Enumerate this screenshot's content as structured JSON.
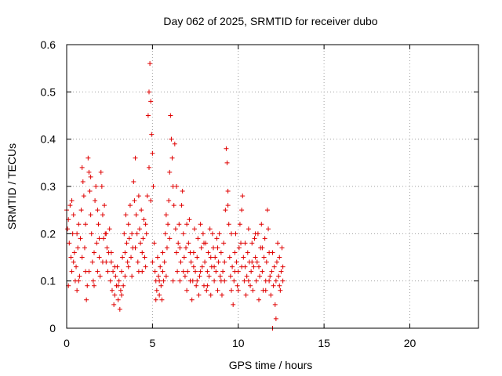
{
  "chart_data": {
    "type": "scatter",
    "title": "Day 062 of 2025, SRMTID for receiver dubo",
    "xlabel": "GPS time / hours",
    "ylabel": "SRMTID / TECUs",
    "xlim": [
      0,
      24
    ],
    "ylim": [
      0,
      0.6
    ],
    "x_ticks": [
      0,
      5,
      10,
      15,
      20
    ],
    "y_ticks": [
      0,
      0.1,
      0.2,
      0.3,
      0.4,
      0.5,
      0.6
    ],
    "x_tick_labels": [
      "0",
      "5",
      "10",
      "15",
      "20"
    ],
    "y_tick_labels": [
      "0",
      "0.1",
      "0.2",
      "0.3",
      "0.4",
      "0.5",
      "0.6"
    ],
    "grid": true,
    "marker": "+",
    "marker_color": "#e00000",
    "series": [
      {
        "name": "SRMTID",
        "points": [
          [
            0.0,
            0.25
          ],
          [
            0.05,
            0.21
          ],
          [
            0.1,
            0.23
          ],
          [
            0.15,
            0.18
          ],
          [
            0.2,
            0.26
          ],
          [
            0.25,
            0.15
          ],
          [
            0.3,
            0.12
          ],
          [
            0.35,
            0.2
          ],
          [
            0.4,
            0.24
          ],
          [
            0.45,
            0.16
          ],
          [
            0.5,
            0.1
          ],
          [
            0.55,
            0.13
          ],
          [
            0.6,
            0.08
          ],
          [
            0.65,
            0.17
          ],
          [
            0.7,
            0.22
          ],
          [
            0.75,
            0.11
          ],
          [
            0.8,
            0.19
          ],
          [
            0.85,
            0.25
          ],
          [
            0.9,
            0.34
          ],
          [
            0.95,
            0.31
          ],
          [
            1.0,
            0.28
          ],
          [
            1.05,
            0.17
          ],
          [
            1.1,
            0.12
          ],
          [
            1.15,
            0.06
          ],
          [
            1.2,
            0.09
          ],
          [
            1.25,
            0.36
          ],
          [
            1.3,
            0.33
          ],
          [
            1.35,
            0.29
          ],
          [
            1.4,
            0.24
          ],
          [
            1.45,
            0.2
          ],
          [
            1.5,
            0.14
          ],
          [
            1.55,
            0.1
          ],
          [
            1.6,
            0.16
          ],
          [
            1.65,
            0.27
          ],
          [
            1.7,
            0.3
          ],
          [
            1.75,
            0.18
          ],
          [
            1.8,
            0.12
          ],
          [
            1.85,
            0.22
          ],
          [
            1.9,
            0.15
          ],
          [
            1.95,
            0.11
          ],
          [
            2.0,
            0.33
          ],
          [
            2.05,
            0.3
          ],
          [
            2.1,
            0.24
          ],
          [
            2.15,
            0.19
          ],
          [
            2.2,
            0.26
          ],
          [
            2.25,
            0.2
          ],
          [
            2.3,
            0.14
          ],
          [
            2.35,
            0.17
          ],
          [
            2.4,
            0.12
          ],
          [
            2.45,
            0.16
          ],
          [
            2.5,
            0.21
          ],
          [
            2.55,
            0.1
          ],
          [
            2.6,
            0.14
          ],
          [
            2.65,
            0.08
          ],
          [
            2.7,
            0.12
          ],
          [
            2.75,
            0.05
          ],
          [
            2.8,
            0.07
          ],
          [
            2.85,
            0.11
          ],
          [
            2.9,
            0.09
          ],
          [
            2.95,
            0.13
          ],
          [
            3.0,
            0.06
          ],
          [
            3.05,
            0.1
          ],
          [
            3.1,
            0.04
          ],
          [
            3.15,
            0.08
          ],
          [
            3.2,
            0.12
          ],
          [
            3.25,
            0.15
          ],
          [
            3.3,
            0.09
          ],
          [
            3.35,
            0.2
          ],
          [
            3.4,
            0.16
          ],
          [
            3.45,
            0.24
          ],
          [
            3.5,
            0.18
          ],
          [
            3.55,
            0.14
          ],
          [
            3.6,
            0.22
          ],
          [
            3.65,
            0.19
          ],
          [
            3.7,
            0.26
          ],
          [
            3.75,
            0.15
          ],
          [
            3.8,
            0.11
          ],
          [
            3.85,
            0.17
          ],
          [
            3.9,
            0.31
          ],
          [
            3.95,
            0.27
          ],
          [
            4.0,
            0.36
          ],
          [
            4.05,
            0.24
          ],
          [
            4.1,
            0.2
          ],
          [
            4.15,
            0.14
          ],
          [
            4.2,
            0.12
          ],
          [
            4.25,
            0.21
          ],
          [
            4.3,
            0.18
          ],
          [
            4.35,
            0.25
          ],
          [
            4.4,
            0.16
          ],
          [
            4.45,
            0.19
          ],
          [
            4.5,
            0.23
          ],
          [
            4.55,
            0.15
          ],
          [
            4.6,
            0.13
          ],
          [
            4.65,
            0.2
          ],
          [
            4.7,
            0.28
          ],
          [
            4.75,
            0.45
          ],
          [
            4.8,
            0.5
          ],
          [
            4.85,
            0.56
          ],
          [
            4.9,
            0.48
          ],
          [
            4.95,
            0.41
          ],
          [
            5.0,
            0.37
          ],
          [
            5.05,
            0.3
          ],
          [
            5.1,
            0.18
          ],
          [
            5.15,
            0.12
          ],
          [
            5.2,
            0.1
          ],
          [
            5.25,
            0.08
          ],
          [
            5.3,
            0.15
          ],
          [
            5.35,
            0.11
          ],
          [
            5.4,
            0.07
          ],
          [
            5.45,
            0.13
          ],
          [
            5.5,
            0.09
          ],
          [
            5.55,
            0.06
          ],
          [
            5.6,
            0.12
          ],
          [
            5.65,
            0.1
          ],
          [
            5.7,
            0.14
          ],
          [
            5.75,
            0.2
          ],
          [
            5.8,
            0.24
          ],
          [
            5.85,
            0.17
          ],
          [
            5.9,
            0.22
          ],
          [
            5.95,
            0.27
          ],
          [
            6.0,
            0.33
          ],
          [
            6.05,
            0.45
          ],
          [
            6.1,
            0.4
          ],
          [
            6.15,
            0.36
          ],
          [
            6.2,
            0.3
          ],
          [
            6.25,
            0.26
          ],
          [
            6.3,
            0.39
          ],
          [
            6.35,
            0.21
          ],
          [
            6.4,
            0.16
          ],
          [
            6.45,
            0.12
          ],
          [
            6.5,
            0.18
          ],
          [
            6.55,
            0.22
          ],
          [
            6.6,
            0.1
          ],
          [
            6.65,
            0.14
          ],
          [
            6.7,
            0.26
          ],
          [
            6.75,
            0.29
          ],
          [
            6.8,
            0.2
          ],
          [
            6.85,
            0.15
          ],
          [
            6.9,
            0.11
          ],
          [
            6.95,
            0.17
          ],
          [
            7.0,
            0.08
          ],
          [
            7.05,
            0.12
          ],
          [
            7.1,
            0.18
          ],
          [
            7.15,
            0.23
          ],
          [
            7.2,
            0.1
          ],
          [
            7.25,
            0.14
          ],
          [
            7.3,
            0.06
          ],
          [
            7.35,
            0.1
          ],
          [
            7.4,
            0.16
          ],
          [
            7.45,
            0.21
          ],
          [
            7.5,
            0.12
          ],
          [
            7.55,
            0.09
          ],
          [
            7.6,
            0.15
          ],
          [
            7.65,
            0.19
          ],
          [
            7.7,
            0.07
          ],
          [
            7.75,
            0.11
          ],
          [
            7.8,
            0.22
          ],
          [
            7.85,
            0.17
          ],
          [
            7.9,
            0.13
          ],
          [
            7.95,
            0.2
          ],
          [
            8.0,
            0.09
          ],
          [
            8.05,
            0.14
          ],
          [
            8.1,
            0.18
          ],
          [
            8.15,
            0.08
          ],
          [
            8.2,
            0.12
          ],
          [
            8.25,
            0.16
          ],
          [
            8.3,
            0.11
          ],
          [
            8.35,
            0.21
          ],
          [
            8.4,
            0.07
          ],
          [
            8.45,
            0.13
          ],
          [
            8.5,
            0.2
          ],
          [
            8.55,
            0.17
          ],
          [
            8.6,
            0.1
          ],
          [
            8.65,
            0.15
          ],
          [
            8.7,
            0.12
          ],
          [
            8.75,
            0.19
          ],
          [
            8.8,
            0.08
          ],
          [
            8.85,
            0.14
          ],
          [
            8.9,
            0.2
          ],
          [
            8.95,
            0.11
          ],
          [
            9.0,
            0.16
          ],
          [
            9.05,
            0.07
          ],
          [
            9.1,
            0.12
          ],
          [
            9.15,
            0.18
          ],
          [
            9.2,
            0.1
          ],
          [
            9.25,
            0.25
          ],
          [
            9.3,
            0.38
          ],
          [
            9.35,
            0.35
          ],
          [
            9.4,
            0.29
          ],
          [
            9.45,
            0.22
          ],
          [
            9.5,
            0.15
          ],
          [
            9.55,
            0.11
          ],
          [
            9.6,
            0.08
          ],
          [
            9.65,
            0.13
          ],
          [
            9.7,
            0.05
          ],
          [
            9.75,
            0.1
          ],
          [
            9.8,
            0.16
          ],
          [
            9.85,
            0.2
          ],
          [
            9.9,
            0.14
          ],
          [
            9.95,
            0.09
          ],
          [
            10.0,
            0.12
          ],
          [
            10.05,
            0.17
          ],
          [
            10.1,
            0.22
          ],
          [
            10.15,
            0.18
          ],
          [
            10.2,
            0.25
          ],
          [
            10.25,
            0.28
          ],
          [
            10.3,
            0.15
          ],
          [
            10.35,
            0.1
          ],
          [
            10.4,
            0.13
          ],
          [
            10.45,
            0.07
          ],
          [
            10.5,
            0.11
          ],
          [
            10.55,
            0.16
          ],
          [
            10.6,
            0.21
          ],
          [
            10.65,
            0.14
          ],
          [
            10.7,
            0.09
          ],
          [
            10.75,
            0.12
          ],
          [
            10.8,
            0.18
          ],
          [
            10.85,
            0.08
          ],
          [
            10.9,
            0.13
          ],
          [
            10.95,
            0.19
          ],
          [
            11.0,
            0.15
          ],
          [
            11.05,
            0.1
          ],
          [
            11.1,
            0.14
          ],
          [
            11.15,
            0.2
          ],
          [
            11.2,
            0.06
          ],
          [
            11.25,
            0.11
          ],
          [
            11.3,
            0.17
          ],
          [
            11.35,
            0.22
          ],
          [
            11.4,
            0.12
          ],
          [
            11.45,
            0.08
          ],
          [
            11.5,
            0.15
          ],
          [
            11.55,
            0.19
          ],
          [
            11.6,
            0.1
          ],
          [
            11.65,
            0.14
          ],
          [
            11.7,
            0.25
          ],
          [
            11.75,
            0.21
          ],
          [
            11.8,
            0.16
          ],
          [
            11.85,
            0.11
          ],
          [
            11.9,
            0.07
          ],
          [
            11.95,
            0.12
          ],
          [
            12.0,
            0.16
          ],
          [
            12.05,
            0.09
          ],
          [
            12.1,
            0.13
          ],
          [
            12.15,
            0.05
          ],
          [
            12.2,
            0.1
          ],
          [
            12.25,
            0.14
          ],
          [
            12.3,
            0.18
          ],
          [
            12.35,
            0.11
          ],
          [
            12.4,
            0.15
          ],
          [
            12.45,
            0.08
          ],
          [
            12.5,
            0.12
          ],
          [
            12.55,
            0.17
          ],
          [
            12.6,
            0.13
          ],
          [
            0.1,
            0.09
          ],
          [
            0.3,
            0.27
          ],
          [
            0.4,
            0.14
          ],
          [
            0.6,
            0.2
          ],
          [
            0.7,
            0.1
          ],
          [
            0.9,
            0.15
          ],
          [
            1.1,
            0.22
          ],
          [
            1.3,
            0.12
          ],
          [
            1.4,
            0.32
          ],
          [
            1.6,
            0.09
          ],
          [
            1.8,
            0.25
          ],
          [
            1.9,
            0.19
          ],
          [
            2.1,
            0.14
          ],
          [
            2.3,
            0.2
          ],
          [
            2.6,
            0.16
          ],
          [
            2.8,
            0.13
          ],
          [
            3.0,
            0.09
          ],
          [
            3.2,
            0.07
          ],
          [
            3.4,
            0.11
          ],
          [
            3.6,
            0.13
          ],
          [
            3.8,
            0.2
          ],
          [
            4.0,
            0.17
          ],
          [
            4.2,
            0.28
          ],
          [
            4.4,
            0.12
          ],
          [
            4.6,
            0.22
          ],
          [
            4.8,
            0.34
          ],
          [
            4.9,
            0.27
          ],
          [
            5.0,
            0.14
          ],
          [
            5.2,
            0.06
          ],
          [
            5.4,
            0.1
          ],
          [
            5.6,
            0.16
          ],
          [
            5.8,
            0.11
          ],
          [
            6.0,
            0.19
          ],
          [
            6.2,
            0.1
          ],
          [
            6.4,
            0.3
          ],
          [
            6.6,
            0.17
          ],
          [
            6.8,
            0.12
          ],
          [
            7.0,
            0.22
          ],
          [
            7.2,
            0.16
          ],
          [
            7.4,
            0.13
          ],
          [
            7.6,
            0.1
          ],
          [
            7.8,
            0.12
          ],
          [
            8.0,
            0.18
          ],
          [
            8.2,
            0.09
          ],
          [
            8.4,
            0.15
          ],
          [
            8.6,
            0.13
          ],
          [
            8.8,
            0.17
          ],
          [
            9.0,
            0.1
          ],
          [
            9.2,
            0.14
          ],
          [
            9.4,
            0.26
          ],
          [
            9.6,
            0.2
          ],
          [
            9.8,
            0.12
          ],
          [
            10.0,
            0.08
          ],
          [
            10.2,
            0.13
          ],
          [
            10.4,
            0.18
          ],
          [
            10.6,
            0.1
          ],
          [
            10.8,
            0.14
          ],
          [
            11.0,
            0.2
          ],
          [
            11.2,
            0.13
          ],
          [
            11.4,
            0.17
          ],
          [
            11.6,
            0.08
          ],
          [
            11.8,
            0.1
          ],
          [
            12.0,
            0.0
          ],
          [
            12.2,
            0.02
          ],
          [
            12.4,
            0.09
          ],
          [
            12.6,
            0.1
          ]
        ]
      }
    ]
  }
}
